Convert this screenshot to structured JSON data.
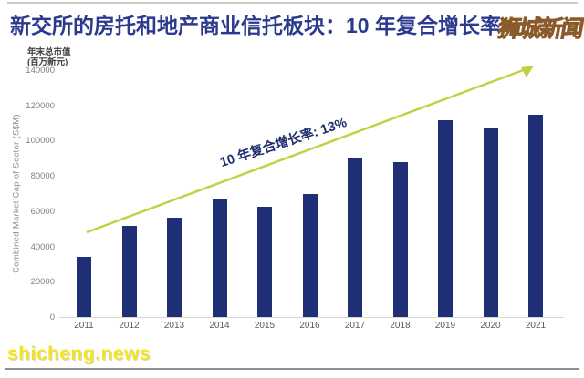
{
  "title": "新交所的房托和地产商业信托板块：10 年复合增长率",
  "watermarks": {
    "top_right": "狮城新闻",
    "bottom_left": "shicheng.news"
  },
  "chart_data": {
    "type": "bar",
    "title": "新交所的房托和地产商业信托板块：10 年复合增长率",
    "y_unit_label": [
      "年末总市值",
      "(百万新元)"
    ],
    "ylabel": "Combined Market Cap of Sector (S$M)",
    "xlabel": "",
    "categories": [
      "2011",
      "2012",
      "2013",
      "2014",
      "2015",
      "2016",
      "2017",
      "2018",
      "2019",
      "2020",
      "2021"
    ],
    "values": [
      34000,
      51500,
      56500,
      67000,
      62500,
      69500,
      90000,
      88000,
      111500,
      107000,
      114500
    ],
    "ylim": [
      0,
      140000
    ],
    "yticks": [
      0,
      20000,
      40000,
      60000,
      80000,
      100000,
      120000,
      140000
    ],
    "ytick_labels": [
      "0",
      "20000",
      "40000",
      "60000",
      "80000",
      "100000",
      "120000",
      "140000"
    ],
    "annotation": "10 年复合增长率: 13%",
    "legend": "none",
    "grid": false,
    "colors": {
      "bar": "#1e2f76",
      "arrow": "#c3d041",
      "title_text": "#2b3a8e",
      "annotation_text": "#1f2e6e"
    }
  }
}
